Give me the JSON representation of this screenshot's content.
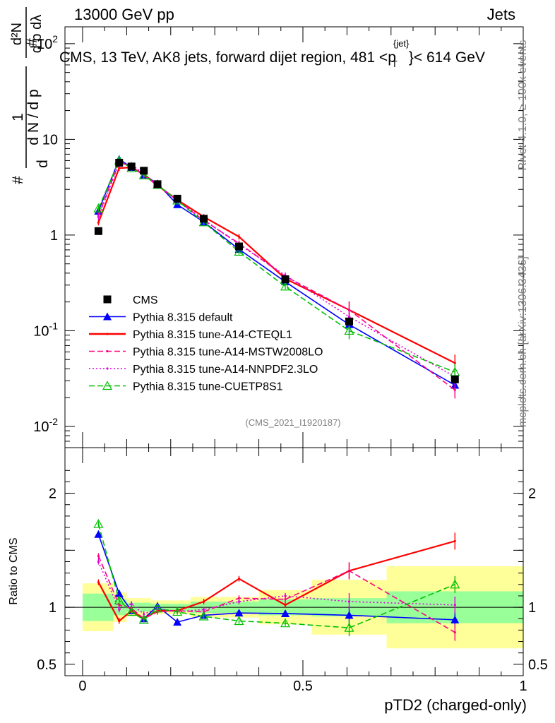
{
  "header": {
    "left": "13000 GeV pp",
    "right": "Jets",
    "side_rivet": "Rivet 4.1.0, ≥ 100k events",
    "side_mcplots": "mcplots.cern.ch [arXiv:1306.3436]"
  },
  "chart_data": [
    {
      "type": "line",
      "title": "CMS, 13 TeV, AK8 jets, forward dijet region, 481 <p_T^{jet}< 614 GeV",
      "title_main": "CMS, 13 TeV, AK8 jets, forward dijet region, 481 <p",
      "title_sup": "{jet}",
      "title_sub": "T",
      "title_end": "}< 614 GeV",
      "ylabel": "1/dN/dpT d²N/dpT dλ",
      "yscale": "log",
      "ylim": [
        0.006,
        150
      ],
      "xlim": [
        -0.04,
        1.0
      ],
      "y_tick_labels": [
        "10^-2",
        "10^-1",
        "1",
        "10",
        "10^2"
      ],
      "watermark": "(CMS_2021_I1920187)",
      "x": [
        0.036,
        0.083,
        0.111,
        0.139,
        0.17,
        0.215,
        0.275,
        0.355,
        0.46,
        0.605,
        0.845
      ],
      "series": [
        {
          "name": "CMS",
          "color": "#000000",
          "style": "marker",
          "values": [
            1.1,
            5.7,
            5.2,
            4.7,
            3.4,
            2.4,
            1.48,
            0.76,
            0.345,
            0.125,
            0.031
          ]
        },
        {
          "name": "Pythia 8.315 default",
          "color": "#0000ff",
          "style": "solid-marker",
          "values": [
            1.78,
            6.2,
            5.1,
            4.25,
            3.45,
            2.08,
            1.37,
            0.71,
            0.325,
            0.116,
            0.027
          ]
        },
        {
          "name": "Pythia 8.315 tune-A14-CTEQL1",
          "color": "#ff0000",
          "style": "solid",
          "values": [
            1.35,
            5.0,
            5.1,
            4.3,
            3.3,
            2.33,
            1.55,
            0.96,
            0.35,
            0.165,
            0.046
          ]
        },
        {
          "name": "Pythia 8.315 tune-A14-MSTW2008LO",
          "color": "#ff0080",
          "style": "dashed",
          "values": [
            1.6,
            5.8,
            5.2,
            4.2,
            3.3,
            2.3,
            1.42,
            0.82,
            0.37,
            0.165,
            0.024
          ]
        },
        {
          "name": "Pythia 8.315 tune-A14-NNPDF2.3LO",
          "color": "#e000e0",
          "style": "dotted",
          "values": [
            1.55,
            5.6,
            5.4,
            4.4,
            3.35,
            2.3,
            1.45,
            0.8,
            0.38,
            0.14,
            0.033
          ]
        },
        {
          "name": "Pythia 8.315 tune-CUETP8S1",
          "color": "#00c000",
          "style": "dashed-open-marker",
          "values": [
            1.9,
            6.0,
            5.0,
            4.2,
            3.35,
            2.3,
            1.36,
            0.67,
            0.29,
            0.1,
            0.037
          ]
        }
      ]
    },
    {
      "type": "line",
      "title": "",
      "ylabel": "Ratio to CMS",
      "xlabel": "pTD2 (charged-only)",
      "ylim": [
        0.4,
        2.4
      ],
      "xlim": [
        -0.04,
        1.0
      ],
      "y_tick_labels": [
        "0.5",
        "1",
        "2"
      ],
      "x_tick_labels": [
        "0",
        "0.5",
        "1"
      ],
      "band_edges": [
        0.0,
        0.07,
        0.1,
        0.125,
        0.155,
        0.19,
        0.245,
        0.31,
        0.4,
        0.52,
        0.69,
        1.0
      ],
      "band_inner": [
        0.12,
        0.07,
        0.04,
        0.04,
        0.03,
        0.03,
        0.05,
        0.05,
        0.07,
        0.08,
        0.14
      ],
      "band_outer": [
        0.21,
        0.13,
        0.08,
        0.08,
        0.06,
        0.06,
        0.09,
        0.09,
        0.15,
        0.24,
        0.36
      ],
      "x": [
        0.036,
        0.083,
        0.111,
        0.139,
        0.17,
        0.215,
        0.275,
        0.355,
        0.46,
        0.605,
        0.845
      ],
      "series": [
        {
          "name": "Pythia 8.315 default",
          "color": "#0000ff",
          "style": "solid-marker",
          "values": [
            1.64,
            1.12,
            0.97,
            0.9,
            1.01,
            0.87,
            0.93,
            0.95,
            0.945,
            0.93,
            0.89
          ]
        },
        {
          "name": "Pythia 8.315 tune-A14-CTEQL1",
          "color": "#ff0000",
          "style": "solid",
          "values": [
            1.22,
            0.88,
            0.97,
            0.9,
            0.97,
            0.97,
            1.05,
            1.25,
            1.02,
            1.32,
            1.58
          ]
        },
        {
          "name": "Pythia 8.315 tune-A14-MSTW2008LO",
          "color": "#ff0080",
          "style": "dashed",
          "values": [
            1.45,
            1.02,
            0.99,
            0.9,
            0.96,
            0.97,
            0.96,
            1.08,
            1.07,
            1.32,
            0.78
          ]
        },
        {
          "name": "Pythia 8.315 tune-A14-NNPDF2.3LO",
          "color": "#e000e0",
          "style": "dotted",
          "values": [
            1.4,
            0.98,
            1.03,
            0.94,
            0.99,
            0.96,
            0.98,
            1.05,
            1.1,
            1.05,
            1.02
          ]
        },
        {
          "name": "Pythia 8.315 tune-CUETP8S1",
          "color": "#00c000",
          "style": "dashed-open-marker",
          "values": [
            1.73,
            1.06,
            0.96,
            0.89,
            0.99,
            0.96,
            0.92,
            0.88,
            0.86,
            0.82,
            1.2
          ]
        }
      ]
    }
  ]
}
